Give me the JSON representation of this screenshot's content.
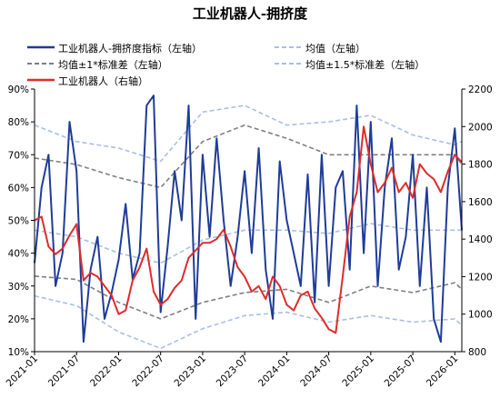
{
  "title": "工业机器人-拥挤度",
  "legend": [
    {
      "label": "工业机器人-拥挤度指标（左轴）",
      "color": "#1f3c98",
      "style": "solid"
    },
    {
      "label": "均值（左轴）",
      "color": "#a9bfe6",
      "style": "dashed"
    },
    {
      "label": "均值±1*标准差（左轴）",
      "color": "#808080",
      "style": "dashed"
    },
    {
      "label": "均值±1.5*标准差（左轴）",
      "color": "#a9bfe6",
      "style": "dashed"
    },
    {
      "label": "工业机器人（右轴）",
      "color": "#e02b2b",
      "style": "solid"
    }
  ],
  "chart_data": {
    "type": "line",
    "title": "工业机器人-拥挤度",
    "x_ticks": [
      "2021-01",
      "2021-07",
      "2022-01",
      "2022-07",
      "2023-01",
      "2023-07",
      "2024-01",
      "2024-07",
      "2025-01",
      "2025-07",
      "2026-01"
    ],
    "xlim": [
      "2021-01",
      "2026-02"
    ],
    "y_left": {
      "ylim": [
        10,
        90
      ],
      "ticks": [
        "10%",
        "20%",
        "30%",
        "40%",
        "50%",
        "60%",
        "70%",
        "80%",
        "90%"
      ]
    },
    "y_right": {
      "ylim": [
        800,
        2200
      ],
      "ticks": [
        "800",
        "1000",
        "1200",
        "1400",
        "1600",
        "1800",
        "2000",
        "2200"
      ]
    },
    "series": [
      {
        "name": "工业机器人-拥挤度指标（左轴）",
        "axis": "left",
        "color": "#1f3c98",
        "x": [
          "2021-01",
          "2021-02",
          "2021-03",
          "2021-04",
          "2021-05",
          "2021-06",
          "2021-07",
          "2021-08",
          "2021-09",
          "2021-10",
          "2021-11",
          "2021-12",
          "2022-01",
          "2022-02",
          "2022-03",
          "2022-04",
          "2022-05",
          "2022-06",
          "2022-07",
          "2022-08",
          "2022-09",
          "2022-10",
          "2022-11",
          "2022-12",
          "2023-01",
          "2023-02",
          "2023-03",
          "2023-04",
          "2023-05",
          "2023-06",
          "2023-07",
          "2023-08",
          "2023-09",
          "2023-10",
          "2023-11",
          "2023-12",
          "2024-01",
          "2024-02",
          "2024-03",
          "2024-04",
          "2024-05",
          "2024-06",
          "2024-07",
          "2024-08",
          "2024-09",
          "2024-10",
          "2024-11",
          "2024-12",
          "2025-01",
          "2025-02",
          "2025-03",
          "2025-04",
          "2025-05",
          "2025-06",
          "2025-07",
          "2025-08",
          "2025-09",
          "2025-10",
          "2025-11",
          "2025-12",
          "2026-01",
          "2026-02"
        ],
        "y": [
          37,
          60,
          70,
          30,
          40,
          80,
          65,
          13,
          35,
          45,
          20,
          28,
          38,
          55,
          32,
          40,
          85,
          88,
          22,
          42,
          65,
          50,
          85,
          20,
          70,
          45,
          75,
          50,
          30,
          45,
          65,
          40,
          72,
          35,
          20,
          68,
          50,
          40,
          30,
          64,
          25,
          70,
          30,
          60,
          65,
          35,
          85,
          40,
          80,
          30,
          60,
          75,
          35,
          45,
          70,
          30,
          60,
          20,
          13,
          60,
          78,
          47
        ]
      },
      {
        "name": "均值（左轴）",
        "axis": "left",
        "color": "#a9bfe6",
        "x": [
          "2021-01",
          "2021-07",
          "2022-01",
          "2022-07",
          "2023-01",
          "2023-07",
          "2024-01",
          "2024-07",
          "2025-01",
          "2025-07",
          "2026-01",
          "2026-02"
        ],
        "y": [
          47,
          45,
          40,
          37,
          44,
          47,
          47,
          46,
          49,
          47,
          47,
          47
        ]
      },
      {
        "name": "均值+1*标准差（左轴）",
        "axis": "left",
        "color": "#808080",
        "x": [
          "2021-01",
          "2021-07",
          "2022-01",
          "2022-07",
          "2023-01",
          "2023-07",
          "2024-01",
          "2024-07",
          "2025-01",
          "2025-07",
          "2026-01",
          "2026-02"
        ],
        "y": [
          69,
          67,
          63,
          60,
          74,
          79,
          75,
          70,
          70,
          70,
          70,
          67
        ]
      },
      {
        "name": "均值-1*标准差（左轴）",
        "axis": "left",
        "color": "#808080",
        "x": [
          "2021-01",
          "2021-07",
          "2022-01",
          "2022-07",
          "2023-01",
          "2023-07",
          "2024-01",
          "2024-07",
          "2025-01",
          "2025-07",
          "2026-01",
          "2026-02"
        ],
        "y": [
          33,
          32,
          25,
          20,
          25,
          28,
          29,
          25,
          30,
          28,
          31,
          29
        ]
      },
      {
        "name": "均值+1.5*标准差（左轴）",
        "axis": "left",
        "color": "#a9bfe6",
        "x": [
          "2021-01",
          "2021-07",
          "2022-01",
          "2022-07",
          "2023-01",
          "2023-07",
          "2024-01",
          "2024-07",
          "2025-01",
          "2025-07",
          "2026-01",
          "2026-02"
        ],
        "y": [
          79,
          74,
          72,
          68,
          83,
          85,
          79,
          80,
          82,
          76,
          73,
          74
        ]
      },
      {
        "name": "均值-1.5*标准差（左轴）",
        "axis": "left",
        "color": "#a9bfe6",
        "x": [
          "2021-01",
          "2021-07",
          "2022-01",
          "2022-07",
          "2023-01",
          "2023-07",
          "2024-01",
          "2024-07",
          "2025-01",
          "2025-07",
          "2026-01",
          "2026-02"
        ],
        "y": [
          27,
          24,
          16,
          11,
          17,
          21,
          22,
          19,
          21,
          19,
          20,
          18
        ]
      },
      {
        "name": "工业机器人（右轴）",
        "axis": "right",
        "color": "#e02b2b",
        "x": [
          "2021-01",
          "2021-02",
          "2021-03",
          "2021-04",
          "2021-05",
          "2021-06",
          "2021-07",
          "2021-08",
          "2021-09",
          "2021-10",
          "2021-11",
          "2021-12",
          "2022-01",
          "2022-02",
          "2022-03",
          "2022-04",
          "2022-05",
          "2022-06",
          "2022-07",
          "2022-08",
          "2022-09",
          "2022-10",
          "2022-11",
          "2022-12",
          "2023-01",
          "2023-02",
          "2023-03",
          "2023-04",
          "2023-05",
          "2023-06",
          "2023-07",
          "2023-08",
          "2023-09",
          "2023-10",
          "2023-11",
          "2023-12",
          "2024-01",
          "2024-02",
          "2024-03",
          "2024-04",
          "2024-05",
          "2024-06",
          "2024-07",
          "2024-08",
          "2024-09",
          "2024-10",
          "2024-11",
          "2024-12",
          "2025-01",
          "2025-02",
          "2025-03",
          "2025-04",
          "2025-05",
          "2025-06",
          "2025-07",
          "2025-08",
          "2025-09",
          "2025-10",
          "2025-11",
          "2025-12",
          "2026-01",
          "2026-02"
        ],
        "y": [
          1500,
          1520,
          1360,
          1320,
          1350,
          1420,
          1480,
          1180,
          1220,
          1200,
          1150,
          1100,
          1000,
          1020,
          1180,
          1250,
          1350,
          1120,
          1050,
          1080,
          1140,
          1180,
          1300,
          1340,
          1380,
          1380,
          1400,
          1450,
          1360,
          1250,
          1200,
          1120,
          1150,
          1080,
          1200,
          1150,
          1050,
          1020,
          1100,
          1120,
          1030,
          980,
          920,
          900,
          1200,
          1520,
          1650,
          2000,
          1800,
          1650,
          1700,
          1780,
          1650,
          1700,
          1620,
          1800,
          1750,
          1720,
          1650,
          1760,
          1850,
          1810
        ]
      }
    ]
  }
}
